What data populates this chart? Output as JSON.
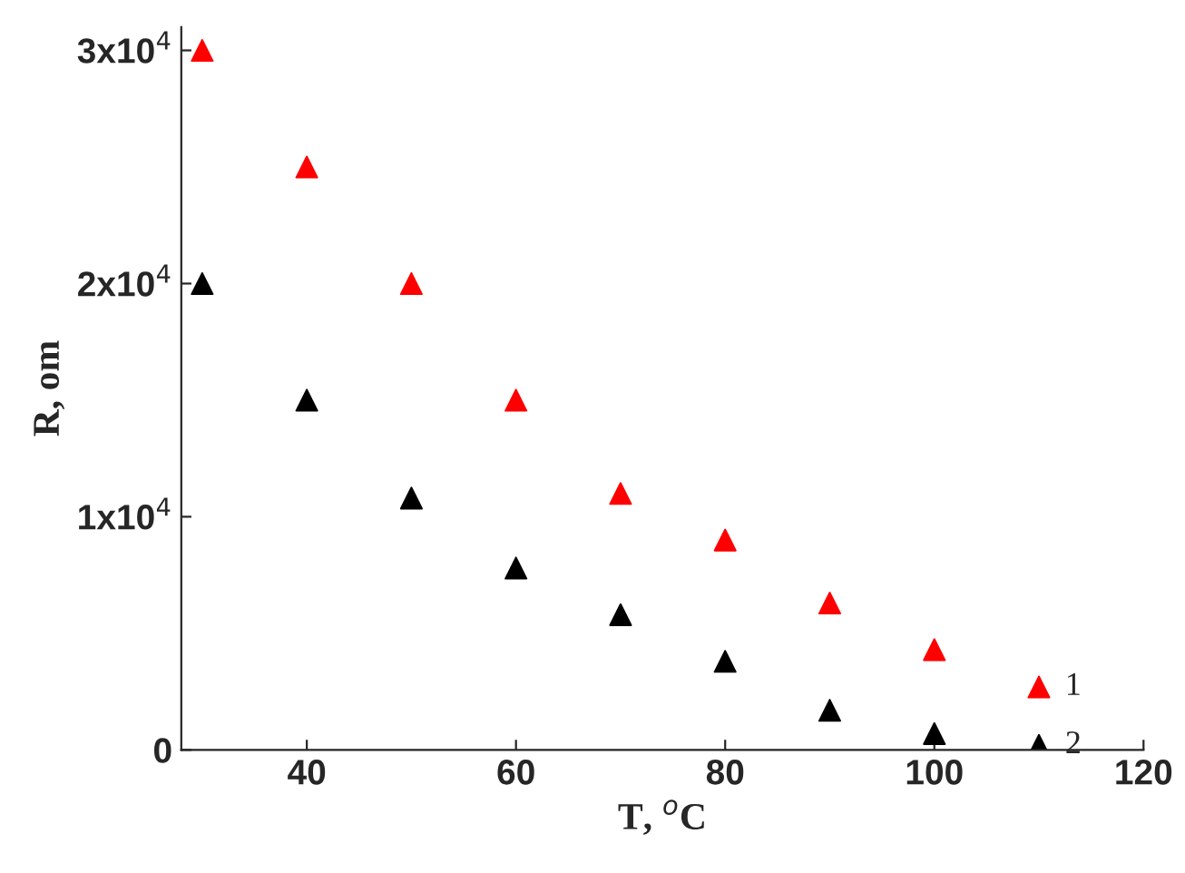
{
  "chart_data": {
    "type": "scatter",
    "xlabel": "T, $^{o}$C",
    "ylabel": "R, om",
    "x": [
      30,
      40,
      50,
      60,
      70,
      80,
      90,
      100,
      110
    ],
    "series": [
      {
        "name": "1",
        "color": "#ff0000",
        "values": [
          30000,
          25000,
          20000,
          15000,
          11000,
          9000,
          6300,
          4300,
          2700
        ]
      },
      {
        "name": "2",
        "color": "#000000",
        "values": [
          20000,
          15000,
          10800,
          7800,
          5800,
          3800,
          1700,
          700,
          200
        ]
      }
    ],
    "marker": "triangle",
    "xlim": [
      28,
      120
    ],
    "ylim": [
      0,
      31000
    ],
    "xticks": [
      40,
      60,
      80,
      100,
      120
    ],
    "yticks": [
      0,
      {
        "value": 10000,
        "label": "1x10$^{4}$"
      },
      {
        "value": 20000,
        "label": "2x10$^{4}$"
      },
      {
        "value": 30000,
        "label": "3x10$^{4}$"
      }
    ],
    "grid": false,
    "legend": false
  }
}
